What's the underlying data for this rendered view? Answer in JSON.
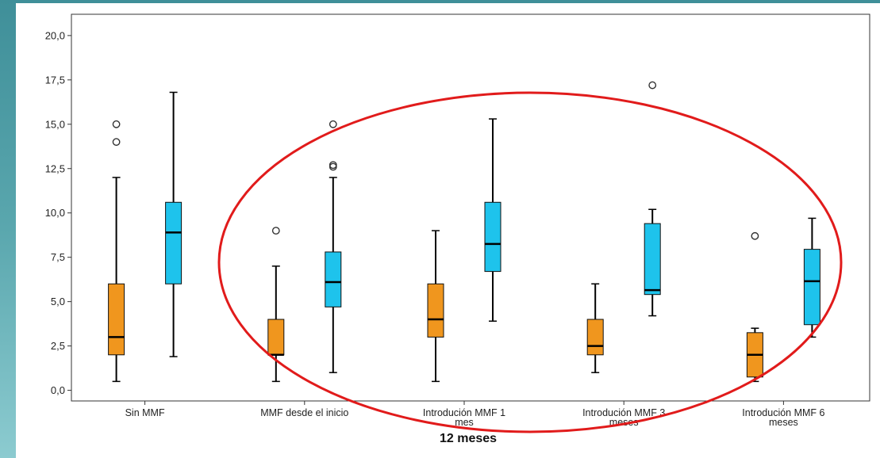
{
  "chart_data": {
    "type": "box",
    "xlabel": "12 meses",
    "ylabel": "",
    "ylim": [
      -0.6,
      21.2
    ],
    "yticks": [
      "0,0",
      "2,5",
      "5,0",
      "7,5",
      "10,0",
      "12,5",
      "15,0",
      "17,5",
      "20,0"
    ],
    "ytick_values": [
      0,
      2.5,
      5,
      7.5,
      10,
      12.5,
      15,
      17.5,
      20
    ],
    "categories": [
      [
        "Sin MMF"
      ],
      [
        "MMF desde el inicio"
      ],
      [
        "Introdución MMF 1",
        "mes"
      ],
      [
        "Introdución MMF 3",
        "meses"
      ],
      [
        "Introdución MMF 6",
        "meses"
      ]
    ],
    "series": [
      {
        "color": "#f0961e",
        "boxes": [
          {
            "min": 0.5,
            "q1": 2.0,
            "median": 3.0,
            "q3": 6.0,
            "max": 12.0,
            "outliers": [
              14.0,
              15.0
            ]
          },
          {
            "min": 0.5,
            "q1": 2.0,
            "median": 2.0,
            "q3": 4.0,
            "max": 7.0,
            "outliers": [
              9.0
            ]
          },
          {
            "min": 0.5,
            "q1": 3.0,
            "median": 4.0,
            "q3": 6.0,
            "max": 9.0,
            "outliers": []
          },
          {
            "min": 1.0,
            "q1": 2.0,
            "median": 2.5,
            "q3": 4.0,
            "max": 6.0,
            "outliers": []
          },
          {
            "min": 0.5,
            "q1": 0.75,
            "median": 2.0,
            "q3": 3.25,
            "max": 3.5,
            "outliers": [
              8.7
            ]
          }
        ]
      },
      {
        "color": "#1ec3ec",
        "boxes": [
          {
            "min": 1.9,
            "q1": 6.0,
            "median": 8.9,
            "q3": 10.6,
            "max": 16.8,
            "outliers": []
          },
          {
            "min": 1.0,
            "q1": 4.7,
            "median": 6.1,
            "q3": 7.8,
            "max": 12.0,
            "outliers": [
              12.6,
              12.7,
              15.0
            ]
          },
          {
            "min": 3.9,
            "q1": 6.7,
            "median": 8.25,
            "q3": 10.6,
            "max": 15.3,
            "outliers": []
          },
          {
            "min": 4.2,
            "q1": 5.4,
            "median": 5.65,
            "q3": 9.4,
            "max": 10.2,
            "outliers": [
              17.2
            ]
          },
          {
            "min": 3.0,
            "q1": 3.7,
            "median": 6.15,
            "q3": 7.95,
            "max": 9.7,
            "outliers": []
          }
        ]
      }
    ],
    "grid": false,
    "legend": "none",
    "annotations": [
      {
        "type": "ellipse",
        "color": "#e11b1b",
        "encloses": "categories 2-5"
      }
    ]
  }
}
